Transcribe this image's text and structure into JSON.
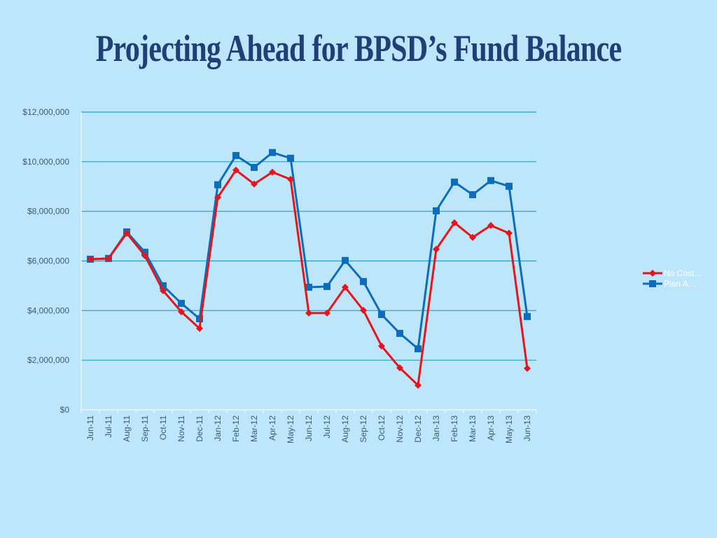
{
  "chart_data": {
    "type": "line",
    "title": "Projecting Ahead for BPSD’s Fund Balance",
    "xlabel": "",
    "ylabel": "",
    "ylim": [
      0,
      12000000
    ],
    "yticks": [
      0,
      2000000,
      4000000,
      6000000,
      8000000,
      10000000,
      12000000
    ],
    "ytick_labels": [
      "$0",
      "$2,000,000",
      "$4,000,000",
      "$6,000,000",
      "$8,000,000",
      "$10,000,000",
      "$12,000,000"
    ],
    "grid": true,
    "legend_position": "right",
    "categories": [
      "Jun-11",
      "Jul-11",
      "Aug-11",
      "Sep-11",
      "Oct-11",
      "Nov-11",
      "Dec-11",
      "Jan-12",
      "Feb-12",
      "Mar-12",
      "Apr-12",
      "May-12",
      "Jun-12",
      "Jul-12",
      "Aug-12",
      "Sep-12",
      "Oct-12",
      "Nov-12",
      "Dec-12",
      "Jan-13",
      "Feb-13",
      "Mar-13",
      "Apr-13",
      "May-13",
      "Jun-13"
    ],
    "series": [
      {
        "name": "No Cost…",
        "color": "#e8141c",
        "marker": "diamond",
        "values": [
          6070000,
          6100000,
          7120000,
          6210000,
          4800000,
          3950000,
          3280000,
          8560000,
          9660000,
          9100000,
          9580000,
          9290000,
          3900000,
          3900000,
          4940000,
          4010000,
          2570000,
          1690000,
          990000,
          6470000,
          7540000,
          6950000,
          7430000,
          7120000,
          1670000
        ]
      },
      {
        "name": "Plan A…",
        "color": "#0e6dba",
        "marker": "square",
        "values": [
          6070000,
          6100000,
          7170000,
          6350000,
          5000000,
          4290000,
          3670000,
          9070000,
          10250000,
          9770000,
          10370000,
          10140000,
          4940000,
          4970000,
          6020000,
          5170000,
          3840000,
          3080000,
          2460000,
          8020000,
          9180000,
          8670000,
          9240000,
          9010000,
          3760000
        ]
      }
    ]
  },
  "colors": {
    "background": "#bde6fb",
    "grid": "#1ea0c8",
    "title": "#1f3f77",
    "axis_text": "#3b5a7a"
  }
}
